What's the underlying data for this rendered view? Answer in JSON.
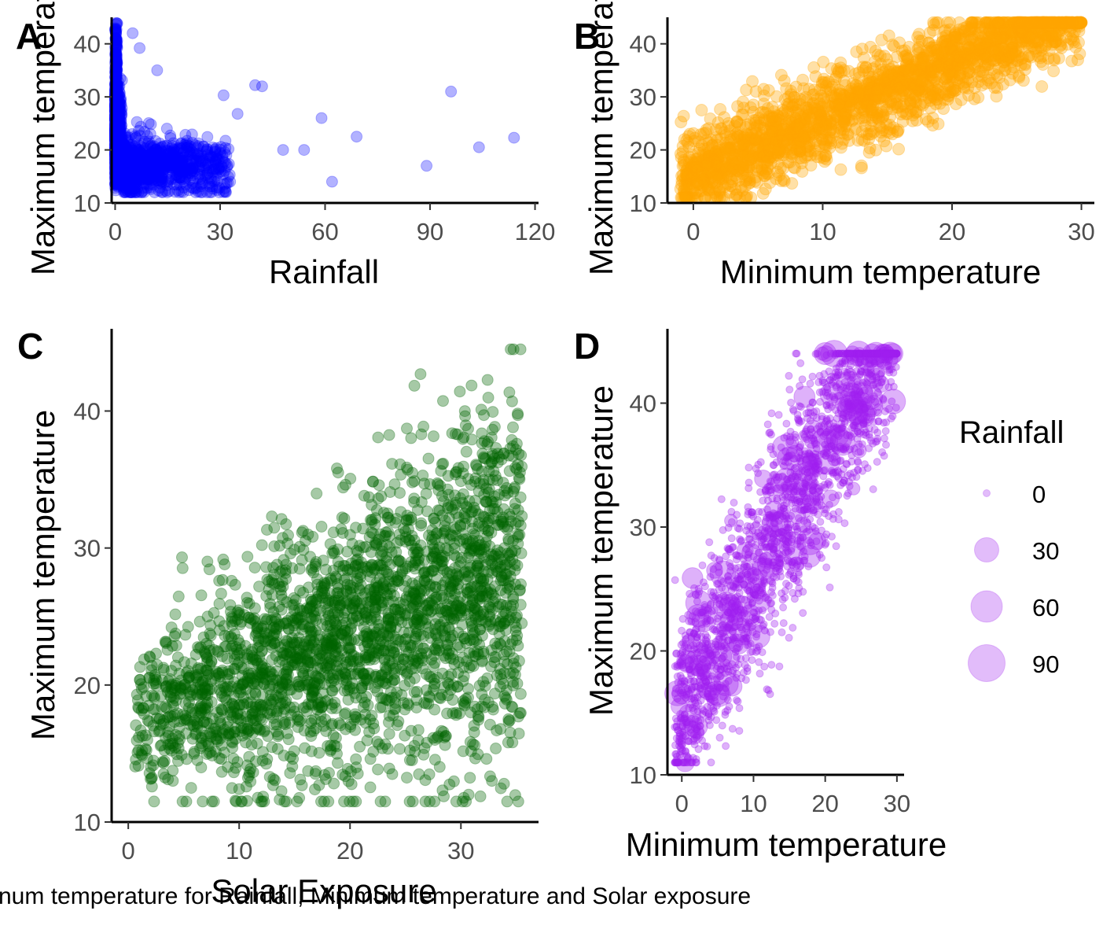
{
  "caption": "num temperature for Rainfall, Minimum temperature and Solar exposure",
  "chart_data": [
    {
      "panel": "A",
      "type": "scatter",
      "xlabel": "Rainfall",
      "ylabel": "Maximum temperature",
      "xlim": [
        -1,
        121
      ],
      "ylim": [
        10,
        45
      ],
      "xticks": [
        0,
        30,
        60,
        90,
        120
      ],
      "xtick_labels": [
        "0",
        "30",
        "60",
        "90",
        "120"
      ],
      "yticks": [
        10,
        20,
        30,
        40
      ],
      "ytick_labels": [
        "10",
        "20",
        "30",
        "40"
      ],
      "color": "#0000ff",
      "opacity": 0.3,
      "notable_points": [
        [
          96,
          31
        ],
        [
          104,
          20.5
        ],
        [
          114,
          22.3
        ],
        [
          89,
          17
        ],
        [
          69,
          22.5
        ],
        [
          62,
          14
        ],
        [
          59,
          26
        ],
        [
          54,
          20
        ],
        [
          48,
          20
        ],
        [
          42,
          32
        ],
        [
          40,
          32.2
        ],
        [
          35,
          26.8
        ],
        [
          31,
          30.3
        ],
        [
          12,
          35
        ],
        [
          7,
          39.2
        ],
        [
          5,
          42
        ]
      ],
      "cloud": {
        "x": [
          0,
          35
        ],
        "y": [
          12,
          44
        ],
        "dense_near_zero": true
      }
    },
    {
      "panel": "B",
      "type": "scatter",
      "xlabel": "Minimum temperature",
      "ylabel": "Maximum temperature",
      "xlim": [
        -2,
        31
      ],
      "ylim": [
        10,
        45
      ],
      "xticks": [
        0,
        10,
        20,
        30
      ],
      "xtick_labels": [
        "0",
        "10",
        "20",
        "30"
      ],
      "yticks": [
        10,
        20,
        30,
        40
      ],
      "ytick_labels": [
        "10",
        "20",
        "30",
        "40"
      ],
      "color": "#ffa500",
      "opacity": 0.35,
      "trend": {
        "slope": 1.05,
        "intercept": 15.5,
        "spread": 4
      },
      "cloud": {
        "x": [
          -1,
          30
        ],
        "y": [
          11,
          44
        ]
      }
    },
    {
      "panel": "C",
      "type": "scatter",
      "xlabel": "Solar Exposure",
      "ylabel": "Maximum temperature",
      "xlim": [
        -1.5,
        37
      ],
      "ylim": [
        10,
        46
      ],
      "xticks": [
        0,
        10,
        20,
        30
      ],
      "xtick_labels": [
        "0",
        "10",
        "20",
        "30"
      ],
      "yticks": [
        10,
        20,
        30,
        40
      ],
      "ytick_labels": [
        "10",
        "20",
        "30",
        "40"
      ],
      "color": "#006400",
      "opacity": 0.35,
      "trend": {
        "slope": 0.33,
        "intercept": 17,
        "spread": 4.5
      },
      "cloud": {
        "x": [
          0.5,
          35.5
        ],
        "y": [
          11.5,
          44.5
        ]
      }
    },
    {
      "panel": "D",
      "type": "scatter",
      "xlabel": "Minimum temperature",
      "ylabel": "Maximum temperature",
      "xlim": [
        -2,
        31
      ],
      "ylim": [
        10,
        46
      ],
      "xticks": [
        0,
        10,
        20,
        30
      ],
      "xtick_labels": [
        "0",
        "10",
        "20",
        "30"
      ],
      "yticks": [
        10,
        20,
        30,
        40
      ],
      "ytick_labels": [
        "10",
        "20",
        "30",
        "40"
      ],
      "color": "#a020f0",
      "opacity": 0.35,
      "size_variable": "Rainfall",
      "trend": {
        "slope": 1.05,
        "intercept": 15.5,
        "spread": 4
      },
      "cloud": {
        "x": [
          -1,
          30
        ],
        "y": [
          11,
          44
        ]
      },
      "legend": {
        "title": "Rainfall",
        "placement": "right",
        "entries": [
          {
            "label": "0",
            "value": 0
          },
          {
            "label": "30",
            "value": 30
          },
          {
            "label": "60",
            "value": 60
          },
          {
            "label": "90",
            "value": 90
          }
        ]
      }
    }
  ]
}
